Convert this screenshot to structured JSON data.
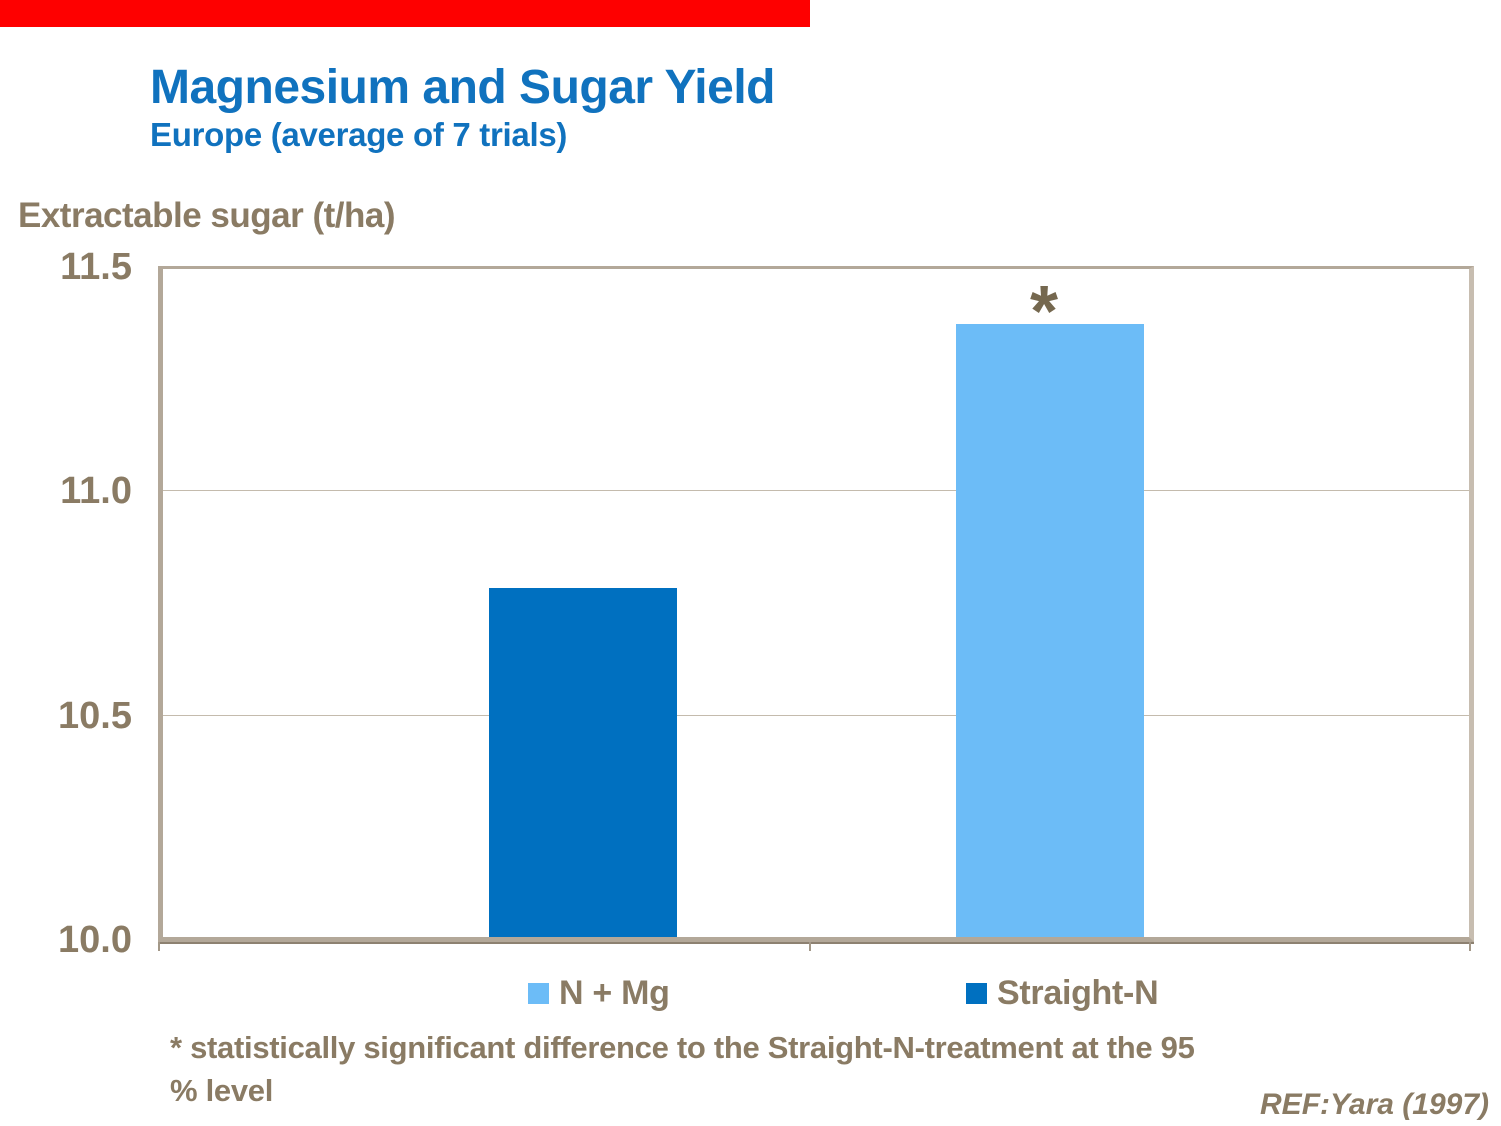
{
  "page": {
    "title": "Magnesium and Sugar Yield",
    "subtitle": "Europe (average of 7 trials)",
    "axis_title": "Extractable sugar (t/ha)",
    "footnote_line1": "* statistically significant difference to the Straight-N-treatment at the 95",
    "footnote_line2": "% level",
    "reference": "REF:Yara (1997)"
  },
  "colors": {
    "top_bar": "#FE0000",
    "title": "#1072BE",
    "text": "#8A7B64",
    "frame": "#B3A899",
    "gridline": "#C4BBAD",
    "asterisk": "#75684F"
  },
  "chart_data": {
    "type": "bar",
    "title": "Magnesium and Sugar Yield",
    "subtitle": "Europe (average of 7 trials)",
    "ylabel": "Extractable sugar (t/ha)",
    "xlabel": "",
    "ylim": [
      10.0,
      11.5
    ],
    "yticks": [
      "11.5",
      "11.0",
      "10.5",
      "10.0"
    ],
    "grid": "horizontal gridlines at 10.5 and 11.0",
    "legend_position": "bottom",
    "bars": [
      {
        "category": "Straight-N",
        "value": 10.78,
        "color": "#0070C0",
        "annotation": ""
      },
      {
        "category": "N + Mg",
        "value": 11.37,
        "color": "#6CBCF7",
        "annotation": "*"
      }
    ],
    "legend": [
      {
        "label": "N + Mg",
        "color": "#6CBCF7"
      },
      {
        "label": "Straight-N",
        "color": "#0070C0"
      }
    ]
  }
}
